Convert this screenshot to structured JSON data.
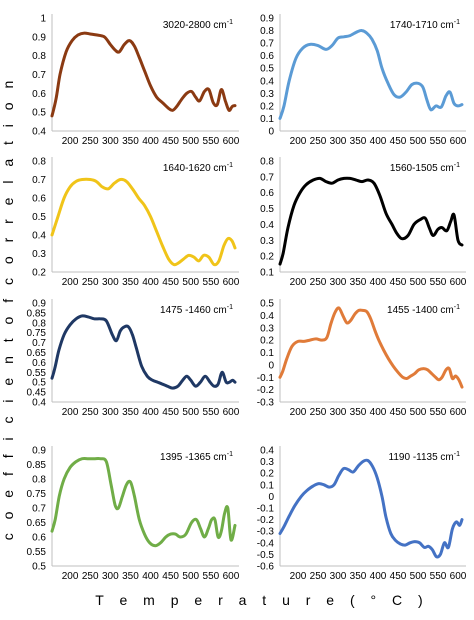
{
  "figure": {
    "ylabel": "c o e f f i c i e n t   o f   c o r r e l a t i o n",
    "xlabel": "T e m p e r a t u r e   ( ° C )"
  },
  "chart_data": [
    {
      "type": "line",
      "title": "3020-2800 cm",
      "title_sup": "-1",
      "color": "#8B3A12",
      "ylim": [
        0.4,
        1.0
      ],
      "yticks": [
        "0.4",
        "0.5",
        "0.6",
        "0.7",
        "0.8",
        "0.9",
        "1"
      ],
      "xlim": [
        155,
        610
      ],
      "xticks": [
        "200",
        "250",
        "300",
        "350",
        "400",
        "450",
        "500",
        "550",
        "600"
      ],
      "grid": false,
      "x": [
        155,
        165,
        175,
        190,
        205,
        220,
        235,
        250,
        265,
        285,
        300,
        312,
        322,
        335,
        348,
        360,
        372,
        385,
        400,
        415,
        430,
        445,
        455,
        465,
        478,
        490,
        502,
        512,
        522,
        534,
        545,
        556,
        566,
        576,
        586,
        595,
        603,
        610
      ],
      "y": [
        0.48,
        0.57,
        0.7,
        0.82,
        0.88,
        0.91,
        0.92,
        0.915,
        0.91,
        0.9,
        0.86,
        0.83,
        0.82,
        0.86,
        0.88,
        0.85,
        0.79,
        0.72,
        0.64,
        0.58,
        0.55,
        0.52,
        0.51,
        0.53,
        0.57,
        0.6,
        0.61,
        0.58,
        0.56,
        0.61,
        0.62,
        0.55,
        0.54,
        0.62,
        0.56,
        0.51,
        0.53,
        0.535
      ]
    },
    {
      "type": "line",
      "title": "1740-1710 cm",
      "title_sup": "-1",
      "color": "#5B9BD5",
      "ylim": [
        0,
        0.9
      ],
      "yticks": [
        "0",
        "0.1",
        "0.2",
        "0.3",
        "0.4",
        "0.5",
        "0.6",
        "0.7",
        "0.8",
        "0.9"
      ],
      "xlim": [
        155,
        610
      ],
      "xticks": [
        "200",
        "250",
        "300",
        "350",
        "400",
        "450",
        "500",
        "550",
        "600"
      ],
      "grid": false,
      "x": [
        155,
        165,
        178,
        195,
        212,
        230,
        250,
        270,
        285,
        300,
        315,
        330,
        348,
        360,
        372,
        385,
        398,
        410,
        425,
        440,
        455,
        470,
        485,
        500,
        512,
        522,
        532,
        545,
        558,
        570,
        580,
        590,
        600,
        610
      ],
      "y": [
        0.1,
        0.2,
        0.4,
        0.58,
        0.66,
        0.69,
        0.68,
        0.65,
        0.68,
        0.74,
        0.75,
        0.76,
        0.79,
        0.8,
        0.78,
        0.73,
        0.64,
        0.5,
        0.38,
        0.29,
        0.27,
        0.31,
        0.37,
        0.38,
        0.35,
        0.25,
        0.17,
        0.2,
        0.19,
        0.28,
        0.31,
        0.22,
        0.2,
        0.21
      ]
    },
    {
      "type": "line",
      "title": "1640-1620 cm",
      "title_sup": "-1",
      "color": "#F0C419",
      "ylim": [
        0.2,
        0.8
      ],
      "yticks": [
        "0.2",
        "0.3",
        "0.4",
        "0.5",
        "0.6",
        "0.7",
        "0.8"
      ],
      "xlim": [
        155,
        610
      ],
      "xticks": [
        "200",
        "250",
        "300",
        "350",
        "400",
        "450",
        "500",
        "550",
        "600"
      ],
      "grid": false,
      "x": [
        155,
        170,
        185,
        200,
        215,
        230,
        250,
        265,
        280,
        295,
        310,
        325,
        340,
        355,
        370,
        385,
        400,
        415,
        430,
        445,
        458,
        470,
        482,
        495,
        508,
        520,
        532,
        545,
        558,
        570,
        582,
        592,
        602,
        610
      ],
      "y": [
        0.4,
        0.5,
        0.6,
        0.66,
        0.69,
        0.7,
        0.7,
        0.69,
        0.66,
        0.65,
        0.68,
        0.7,
        0.69,
        0.65,
        0.6,
        0.56,
        0.5,
        0.42,
        0.34,
        0.27,
        0.24,
        0.25,
        0.27,
        0.29,
        0.28,
        0.26,
        0.29,
        0.28,
        0.24,
        0.26,
        0.34,
        0.38,
        0.37,
        0.33
      ]
    },
    {
      "type": "line",
      "title": "1560-1505 cm",
      "title_sup": "-1",
      "color": "#000000",
      "ylim": [
        0.1,
        0.8
      ],
      "yticks": [
        "0.1",
        "0.2",
        "0.3",
        "0.4",
        "0.5",
        "0.6",
        "0.7",
        "0.8"
      ],
      "xlim": [
        155,
        610
      ],
      "xticks": [
        "200",
        "250",
        "300",
        "350",
        "400",
        "450",
        "500",
        "550",
        "600"
      ],
      "grid": false,
      "x": [
        155,
        163,
        175,
        190,
        205,
        220,
        238,
        255,
        270,
        285,
        300,
        315,
        330,
        345,
        360,
        375,
        390,
        405,
        420,
        435,
        448,
        460,
        475,
        490,
        505,
        518,
        528,
        538,
        550,
        560,
        572,
        582,
        590,
        600,
        610
      ],
      "y": [
        0.15,
        0.22,
        0.38,
        0.52,
        0.6,
        0.65,
        0.68,
        0.69,
        0.67,
        0.66,
        0.68,
        0.69,
        0.69,
        0.68,
        0.67,
        0.68,
        0.66,
        0.58,
        0.47,
        0.4,
        0.34,
        0.31,
        0.33,
        0.4,
        0.43,
        0.44,
        0.38,
        0.33,
        0.37,
        0.38,
        0.36,
        0.42,
        0.46,
        0.3,
        0.27
      ]
    },
    {
      "type": "line",
      "title": "1475 -1460 cm",
      "title_sup": "-1",
      "color": "#1F3864",
      "ylim": [
        0.4,
        0.9
      ],
      "yticks": [
        "0.4",
        "0.45",
        "0.5",
        "0.55",
        "0.6",
        "0.65",
        "0.7",
        "0.75",
        "0.8",
        "0.85",
        "0.9"
      ],
      "xlim": [
        155,
        610
      ],
      "xticks": [
        "200",
        "250",
        "300",
        "350",
        "400",
        "450",
        "500",
        "550",
        "600"
      ],
      "grid": false,
      "x": [
        155,
        162,
        172,
        185,
        200,
        215,
        230,
        245,
        260,
        275,
        290,
        305,
        315,
        325,
        335,
        345,
        355,
        365,
        378,
        392,
        405,
        418,
        430,
        442,
        455,
        468,
        480,
        490,
        500,
        512,
        524,
        536,
        548,
        558,
        568,
        578,
        588,
        596,
        604,
        610
      ],
      "y": [
        0.52,
        0.57,
        0.66,
        0.74,
        0.79,
        0.82,
        0.835,
        0.83,
        0.82,
        0.82,
        0.81,
        0.74,
        0.71,
        0.76,
        0.78,
        0.78,
        0.74,
        0.67,
        0.58,
        0.53,
        0.51,
        0.5,
        0.49,
        0.48,
        0.47,
        0.48,
        0.51,
        0.53,
        0.51,
        0.48,
        0.5,
        0.53,
        0.5,
        0.48,
        0.49,
        0.55,
        0.5,
        0.5,
        0.51,
        0.5
      ]
    },
    {
      "type": "line",
      "title": "1455 -1400 cm",
      "title_sup": "-1",
      "color": "#E07B39",
      "ylim": [
        -0.3,
        0.5
      ],
      "yticks": [
        "-0.3",
        "-0.2",
        "-0.1",
        "0",
        "0.1",
        "0.2",
        "0.3",
        "0.4",
        "0.5"
      ],
      "xlim": [
        155,
        610
      ],
      "xticks": [
        "200",
        "250",
        "300",
        "350",
        "400",
        "450",
        "500",
        "550",
        "600"
      ],
      "grid": false,
      "x": [
        155,
        162,
        172,
        185,
        200,
        215,
        230,
        245,
        260,
        272,
        282,
        292,
        302,
        312,
        322,
        332,
        342,
        352,
        362,
        372,
        382,
        392,
        402,
        414,
        426,
        438,
        450,
        462,
        472,
        482,
        492,
        502,
        514,
        524,
        534,
        544,
        552,
        560,
        570,
        578,
        586,
        594,
        602,
        610
      ],
      "y": [
        -0.1,
        -0.05,
        0.05,
        0.15,
        0.19,
        0.19,
        0.2,
        0.21,
        0.2,
        0.22,
        0.33,
        0.42,
        0.46,
        0.4,
        0.34,
        0.36,
        0.41,
        0.44,
        0.44,
        0.43,
        0.37,
        0.28,
        0.2,
        0.12,
        0.05,
        -0.01,
        -0.06,
        -0.1,
        -0.11,
        -0.09,
        -0.07,
        -0.04,
        -0.03,
        -0.04,
        -0.07,
        -0.1,
        -0.12,
        -0.1,
        -0.04,
        -0.03,
        -0.11,
        -0.09,
        -0.12,
        -0.18
      ]
    },
    {
      "type": "line",
      "title": "1395 -1365 cm",
      "title_sup": "-1",
      "color": "#70AD47",
      "ylim": [
        0.5,
        0.9
      ],
      "yticks": [
        "0.5",
        "0.55",
        "0.6",
        "0.65",
        "0.7",
        "0.75",
        "0.8",
        "0.85",
        "0.9"
      ],
      "xlim": [
        155,
        610
      ],
      "xticks": [
        "200",
        "250",
        "300",
        "350",
        "400",
        "450",
        "500",
        "550",
        "600"
      ],
      "grid": false,
      "x": [
        155,
        163,
        173,
        185,
        200,
        215,
        230,
        245,
        260,
        275,
        290,
        302,
        312,
        320,
        330,
        340,
        350,
        360,
        372,
        385,
        398,
        412,
        425,
        438,
        450,
        462,
        474,
        488,
        502,
        514,
        524,
        534,
        544,
        552,
        560,
        568,
        576,
        584,
        592,
        600,
        610
      ],
      "y": [
        0.62,
        0.66,
        0.74,
        0.8,
        0.84,
        0.86,
        0.87,
        0.87,
        0.87,
        0.87,
        0.86,
        0.78,
        0.71,
        0.7,
        0.74,
        0.78,
        0.79,
        0.74,
        0.66,
        0.61,
        0.58,
        0.57,
        0.58,
        0.6,
        0.61,
        0.61,
        0.6,
        0.61,
        0.65,
        0.66,
        0.63,
        0.6,
        0.63,
        0.66,
        0.66,
        0.6,
        0.62,
        0.68,
        0.7,
        0.59,
        0.64
      ]
    },
    {
      "type": "line",
      "title": "1190 -1135 cm",
      "title_sup": "-1",
      "color": "#4472C4",
      "ylim": [
        -0.6,
        0.4
      ],
      "yticks": [
        "-0.6",
        "-0.5",
        "-0.4",
        "-0.3",
        "-0.2",
        "-0.1",
        "0",
        "0.1",
        "0.2",
        "0.3",
        "0.4"
      ],
      "xlim": [
        155,
        610
      ],
      "xticks": [
        "200",
        "250",
        "300",
        "350",
        "400",
        "450",
        "500",
        "550",
        "600"
      ],
      "grid": false,
      "x": [
        155,
        165,
        178,
        192,
        208,
        222,
        238,
        252,
        265,
        278,
        290,
        302,
        314,
        326,
        338,
        350,
        362,
        374,
        386,
        398,
        410,
        420,
        432,
        444,
        456,
        468,
        480,
        492,
        504,
        516,
        526,
        536,
        546,
        556,
        566,
        576,
        586,
        596,
        604,
        610
      ],
      "y": [
        -0.32,
        -0.26,
        -0.17,
        -0.08,
        0.0,
        0.05,
        0.09,
        0.11,
        0.1,
        0.08,
        0.1,
        0.18,
        0.24,
        0.23,
        0.21,
        0.26,
        0.3,
        0.31,
        0.26,
        0.16,
        0.0,
        -0.18,
        -0.32,
        -0.38,
        -0.41,
        -0.42,
        -0.4,
        -0.39,
        -0.4,
        -0.44,
        -0.43,
        -0.46,
        -0.52,
        -0.5,
        -0.4,
        -0.44,
        -0.28,
        -0.22,
        -0.25,
        -0.2
      ]
    }
  ]
}
